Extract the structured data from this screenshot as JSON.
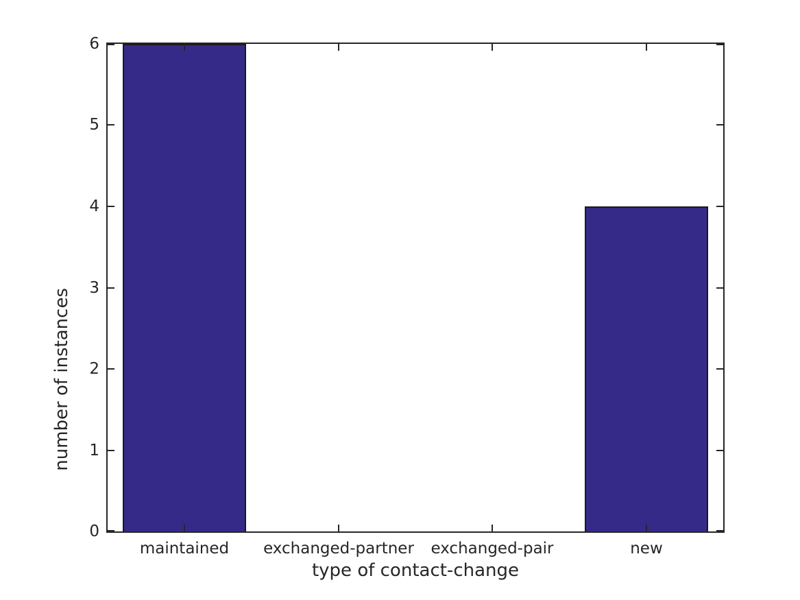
{
  "chart_data": {
    "type": "bar",
    "categories": [
      "maintained",
      "exchanged-partner",
      "exchanged-pair",
      "new"
    ],
    "values": [
      6,
      0,
      0,
      4
    ],
    "title": "",
    "xlabel": "type of contact-change",
    "ylabel": "number of instances",
    "ylim": [
      0,
      6
    ],
    "yticks": [
      0,
      1,
      2,
      3,
      4,
      5,
      6
    ],
    "bar_color": "#352a87",
    "bar_edge_color": "#1a1a1a",
    "axis_color": "#262626",
    "background_color": "#ffffff",
    "grid": false,
    "legend": false,
    "tick_direction": "in",
    "box": true
  }
}
